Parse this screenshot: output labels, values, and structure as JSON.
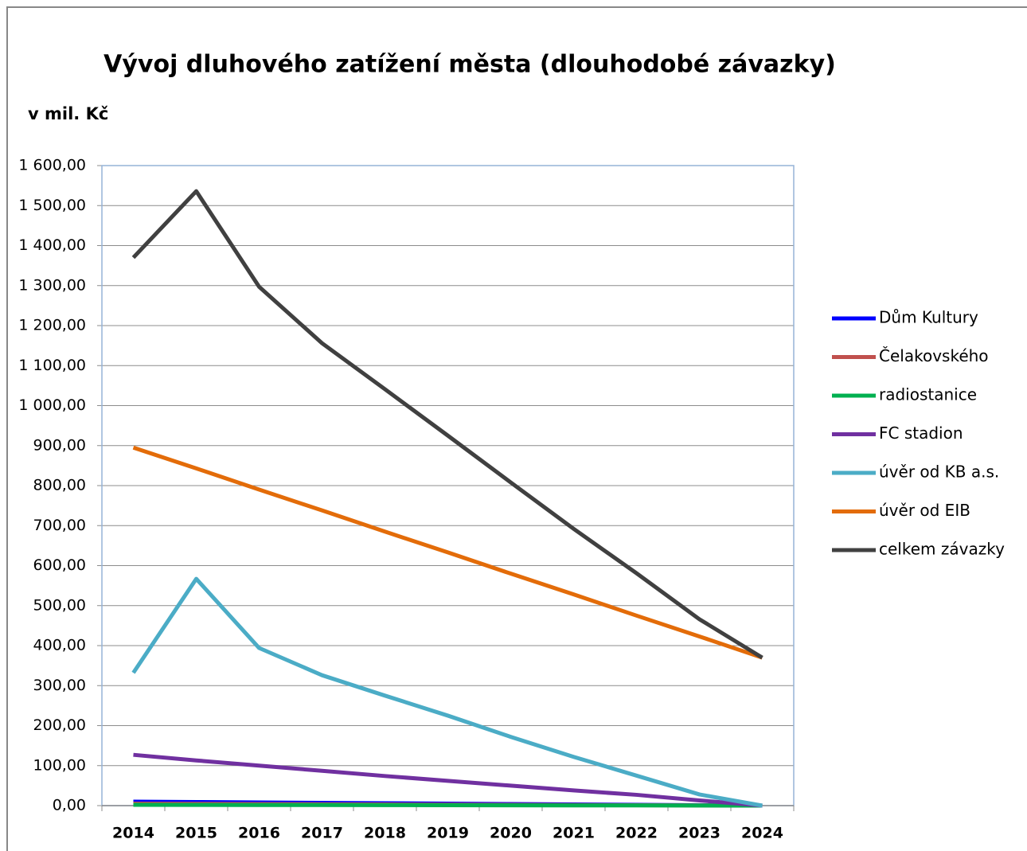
{
  "chart_data": {
    "type": "line",
    "title": "Vývoj dluhového zatížení města (dlouhodobé závazky)",
    "y_label": "v mil. Kč",
    "categories": [
      "2014",
      "2015",
      "2016",
      "2017",
      "2018",
      "2019",
      "2020",
      "2021",
      "2022",
      "2023",
      "2024"
    ],
    "series": [
      {
        "name": "Dům Kultury",
        "color": "#0000ff",
        "values": [
          10,
          9,
          8,
          7,
          6,
          5,
          4,
          3,
          2,
          1,
          0
        ]
      },
      {
        "name": "Čelakovského",
        "color": "#c0504d",
        "values": [
          5,
          4.5,
          4,
          3.5,
          3,
          2.5,
          2,
          1.5,
          1,
          0.5,
          0
        ]
      },
      {
        "name": "radiostanice",
        "color": "#00b050",
        "values": [
          2,
          1.8,
          1.6,
          1.4,
          1.2,
          1,
          0.8,
          0.6,
          0.4,
          0.2,
          0
        ]
      },
      {
        "name": "FC stadion",
        "color": "#7030a0",
        "values": [
          127,
          113,
          100,
          87,
          74,
          62,
          50,
          38,
          27,
          13,
          0
        ]
      },
      {
        "name": "úvěr od KB a.s.",
        "color": "#4bacc6",
        "values": [
          332,
          567,
          394,
          326,
          275,
          225,
          172,
          122,
          75,
          28,
          0
        ]
      },
      {
        "name": "úvěr od EIB",
        "color": "#e36c09",
        "values": [
          895,
          843,
          790,
          738,
          685,
          633,
          580,
          528,
          475,
          423,
          370
        ]
      },
      {
        "name": "celkem závazky",
        "color": "#404040",
        "values": [
          1370,
          1536,
          1297,
          1156,
          1041,
          925,
          808,
          692,
          581,
          466,
          370
        ]
      }
    ],
    "ylim": [
      0,
      1600
    ],
    "yticks": [
      {
        "value": 0,
        "label": "0,00"
      },
      {
        "value": 100,
        "label": "100,00"
      },
      {
        "value": 200,
        "label": "200,00"
      },
      {
        "value": 300,
        "label": "300,00"
      },
      {
        "value": 400,
        "label": "400,00"
      },
      {
        "value": 500,
        "label": "500,00"
      },
      {
        "value": 600,
        "label": "600,00"
      },
      {
        "value": 700,
        "label": "700,00"
      },
      {
        "value": 800,
        "label": "800,00"
      },
      {
        "value": 900,
        "label": "900,00"
      },
      {
        "value": 1000,
        "label": "1 000,00"
      },
      {
        "value": 1100,
        "label": "1 100,00"
      },
      {
        "value": 1200,
        "label": "1 200,00"
      },
      {
        "value": 1300,
        "label": "1 300,00"
      },
      {
        "value": 1400,
        "label": "1 400,00"
      },
      {
        "value": 1500,
        "label": "1 500,00"
      },
      {
        "value": 1600,
        "label": "1 600,00"
      }
    ],
    "grid": true,
    "legend": "right"
  }
}
